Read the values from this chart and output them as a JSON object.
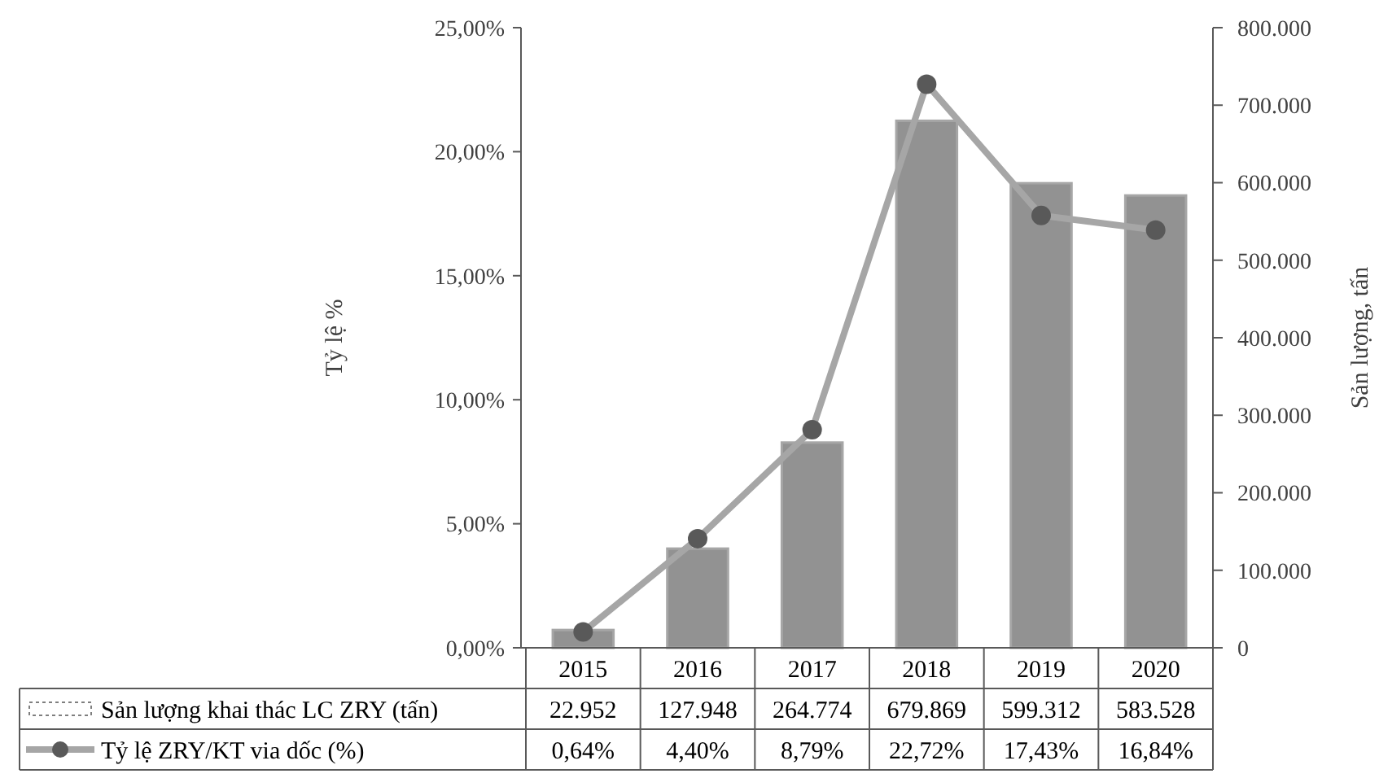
{
  "chart_data": {
    "type": "bar",
    "ylabel": "Tỷ lệ %",
    "y2label": "Sản lượng, tấn",
    "categories": [
      "2015",
      "2016",
      "2017",
      "2018",
      "2019",
      "2020"
    ],
    "series": [
      {
        "name": "Sản lượng khai thác LC ZRY (tấn)",
        "axis": "y2",
        "color": "#7f7f7f",
        "values": [
          22952,
          127948,
          264774,
          679869,
          599312,
          583528
        ],
        "value_labels": [
          "22.952",
          "127.948",
          "264.774",
          "679.869",
          "599.312",
          "583.528"
        ]
      },
      {
        "name": "Tỷ lệ ZRY/KT via dốc (%)",
        "type": "line",
        "axis": "y",
        "color": "#a6a6a6",
        "marker": "circle",
        "values": [
          0.64,
          4.4,
          8.79,
          22.72,
          17.43,
          16.84
        ],
        "value_labels": [
          "0,64%",
          "4,40%",
          "8,79%",
          "22,72%",
          "17,43%",
          "16,84%"
        ]
      }
    ],
    "ylim": [
      0,
      25
    ],
    "yticks": [
      {
        "value": 0,
        "label": "0,00%"
      },
      {
        "value": 5,
        "label": "5,00%"
      },
      {
        "value": 10,
        "label": "10,00%"
      },
      {
        "value": 15,
        "label": "15,00%"
      },
      {
        "value": 20,
        "label": "20,00%"
      },
      {
        "value": 25,
        "label": "25,00%"
      }
    ],
    "y2lim": [
      0,
      800000
    ],
    "y2ticks": [
      0,
      {
        "value": 100000,
        "label": "100.000"
      },
      {
        "value": 200000,
        "label": "200.000"
      },
      {
        "value": 300000,
        "label": "300.000"
      },
      {
        "value": 400000,
        "label": "400.000"
      },
      {
        "value": 500000,
        "label": "500.000"
      },
      {
        "value": 600000,
        "label": "600.000"
      },
      {
        "value": 700000,
        "label": "700.000"
      },
      {
        "value": 800000,
        "label": "800.000"
      }
    ],
    "grid": false,
    "legend": "bottom"
  }
}
